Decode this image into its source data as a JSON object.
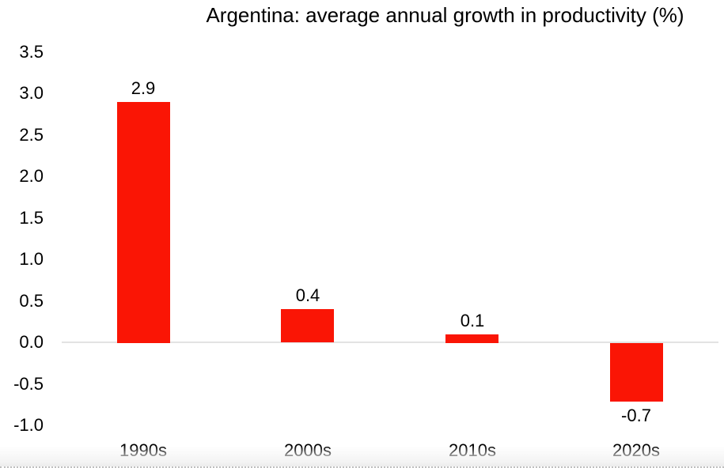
{
  "chart_data": {
    "type": "bar",
    "title": "Argentina: average annual growth in productivity (%)",
    "categories": [
      "1990s",
      "2000s",
      "2010s",
      "2020s"
    ],
    "values": [
      2.9,
      0.4,
      0.1,
      -0.7
    ],
    "bar_labels": [
      "2.9",
      "0.4",
      "0.1",
      "-0.7"
    ],
    "y_ticks": [
      3.5,
      3.0,
      2.5,
      2.0,
      1.5,
      1.0,
      0.5,
      0.0,
      -0.5,
      -1.0
    ],
    "y_tick_labels": [
      "3.5",
      "3.0",
      "2.5",
      "2.0",
      "1.5",
      "1.0",
      "0.5",
      "0.0",
      "-0.5",
      "-1.0"
    ],
    "ylim": [
      -1.0,
      3.5
    ],
    "xlabel": "",
    "ylabel": "",
    "grid": "zero-baseline-only",
    "legend_position": "none",
    "colors": {
      "bar": "#fa1505",
      "baseline": "#e3e3e3",
      "text": "#000000"
    }
  }
}
